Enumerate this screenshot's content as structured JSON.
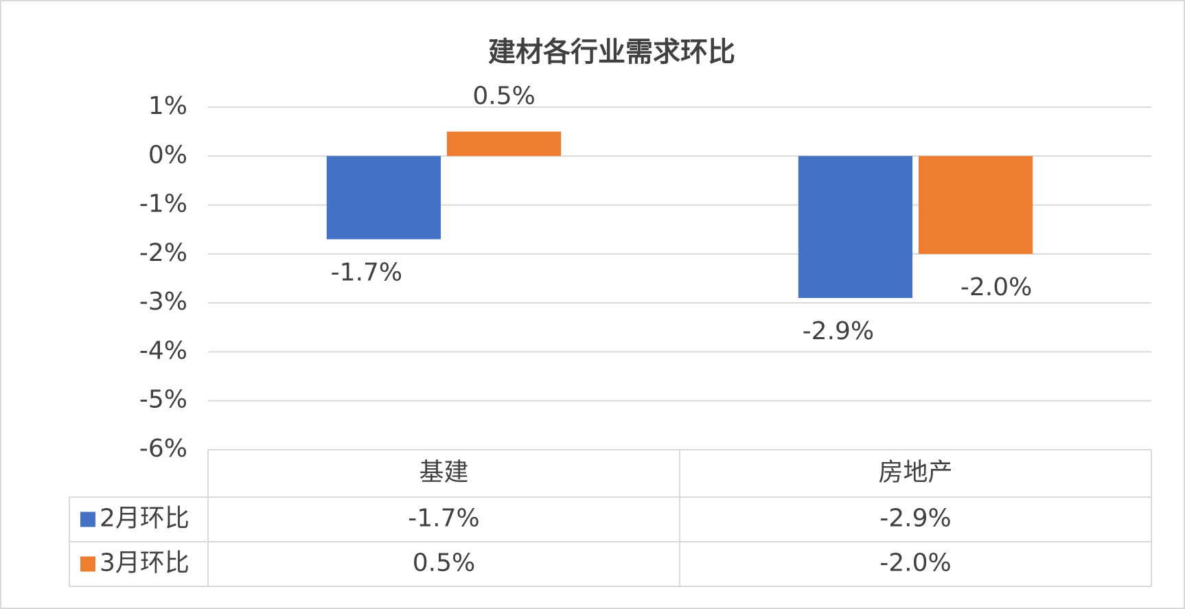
{
  "chart_data": {
    "type": "bar",
    "title": "建材各行业需求环比",
    "categories": [
      "基建",
      "房地产"
    ],
    "series": [
      {
        "name": "2月环比",
        "color": "#4472c4",
        "values": [
          -1.7,
          -2.9
        ],
        "value_labels": [
          "-1.7%",
          "-2.9%"
        ]
      },
      {
        "name": "3月环比",
        "color": "#ed7d31",
        "values": [
          0.5,
          -2.0
        ],
        "value_labels": [
          "0.5%",
          "-2.0%"
        ]
      }
    ],
    "ylim": [
      -6,
      1
    ],
    "yticks": [
      {
        "value": 1,
        "label": "1%"
      },
      {
        "value": 0,
        "label": "0%"
      },
      {
        "value": -1,
        "label": "-1%"
      },
      {
        "value": -2,
        "label": "-2%"
      },
      {
        "value": -3,
        "label": "-3%"
      },
      {
        "value": -4,
        "label": "-4%"
      },
      {
        "value": -5,
        "label": "-5%"
      },
      {
        "value": -6,
        "label": "-6%"
      }
    ],
    "grid": true,
    "legend": "table"
  }
}
